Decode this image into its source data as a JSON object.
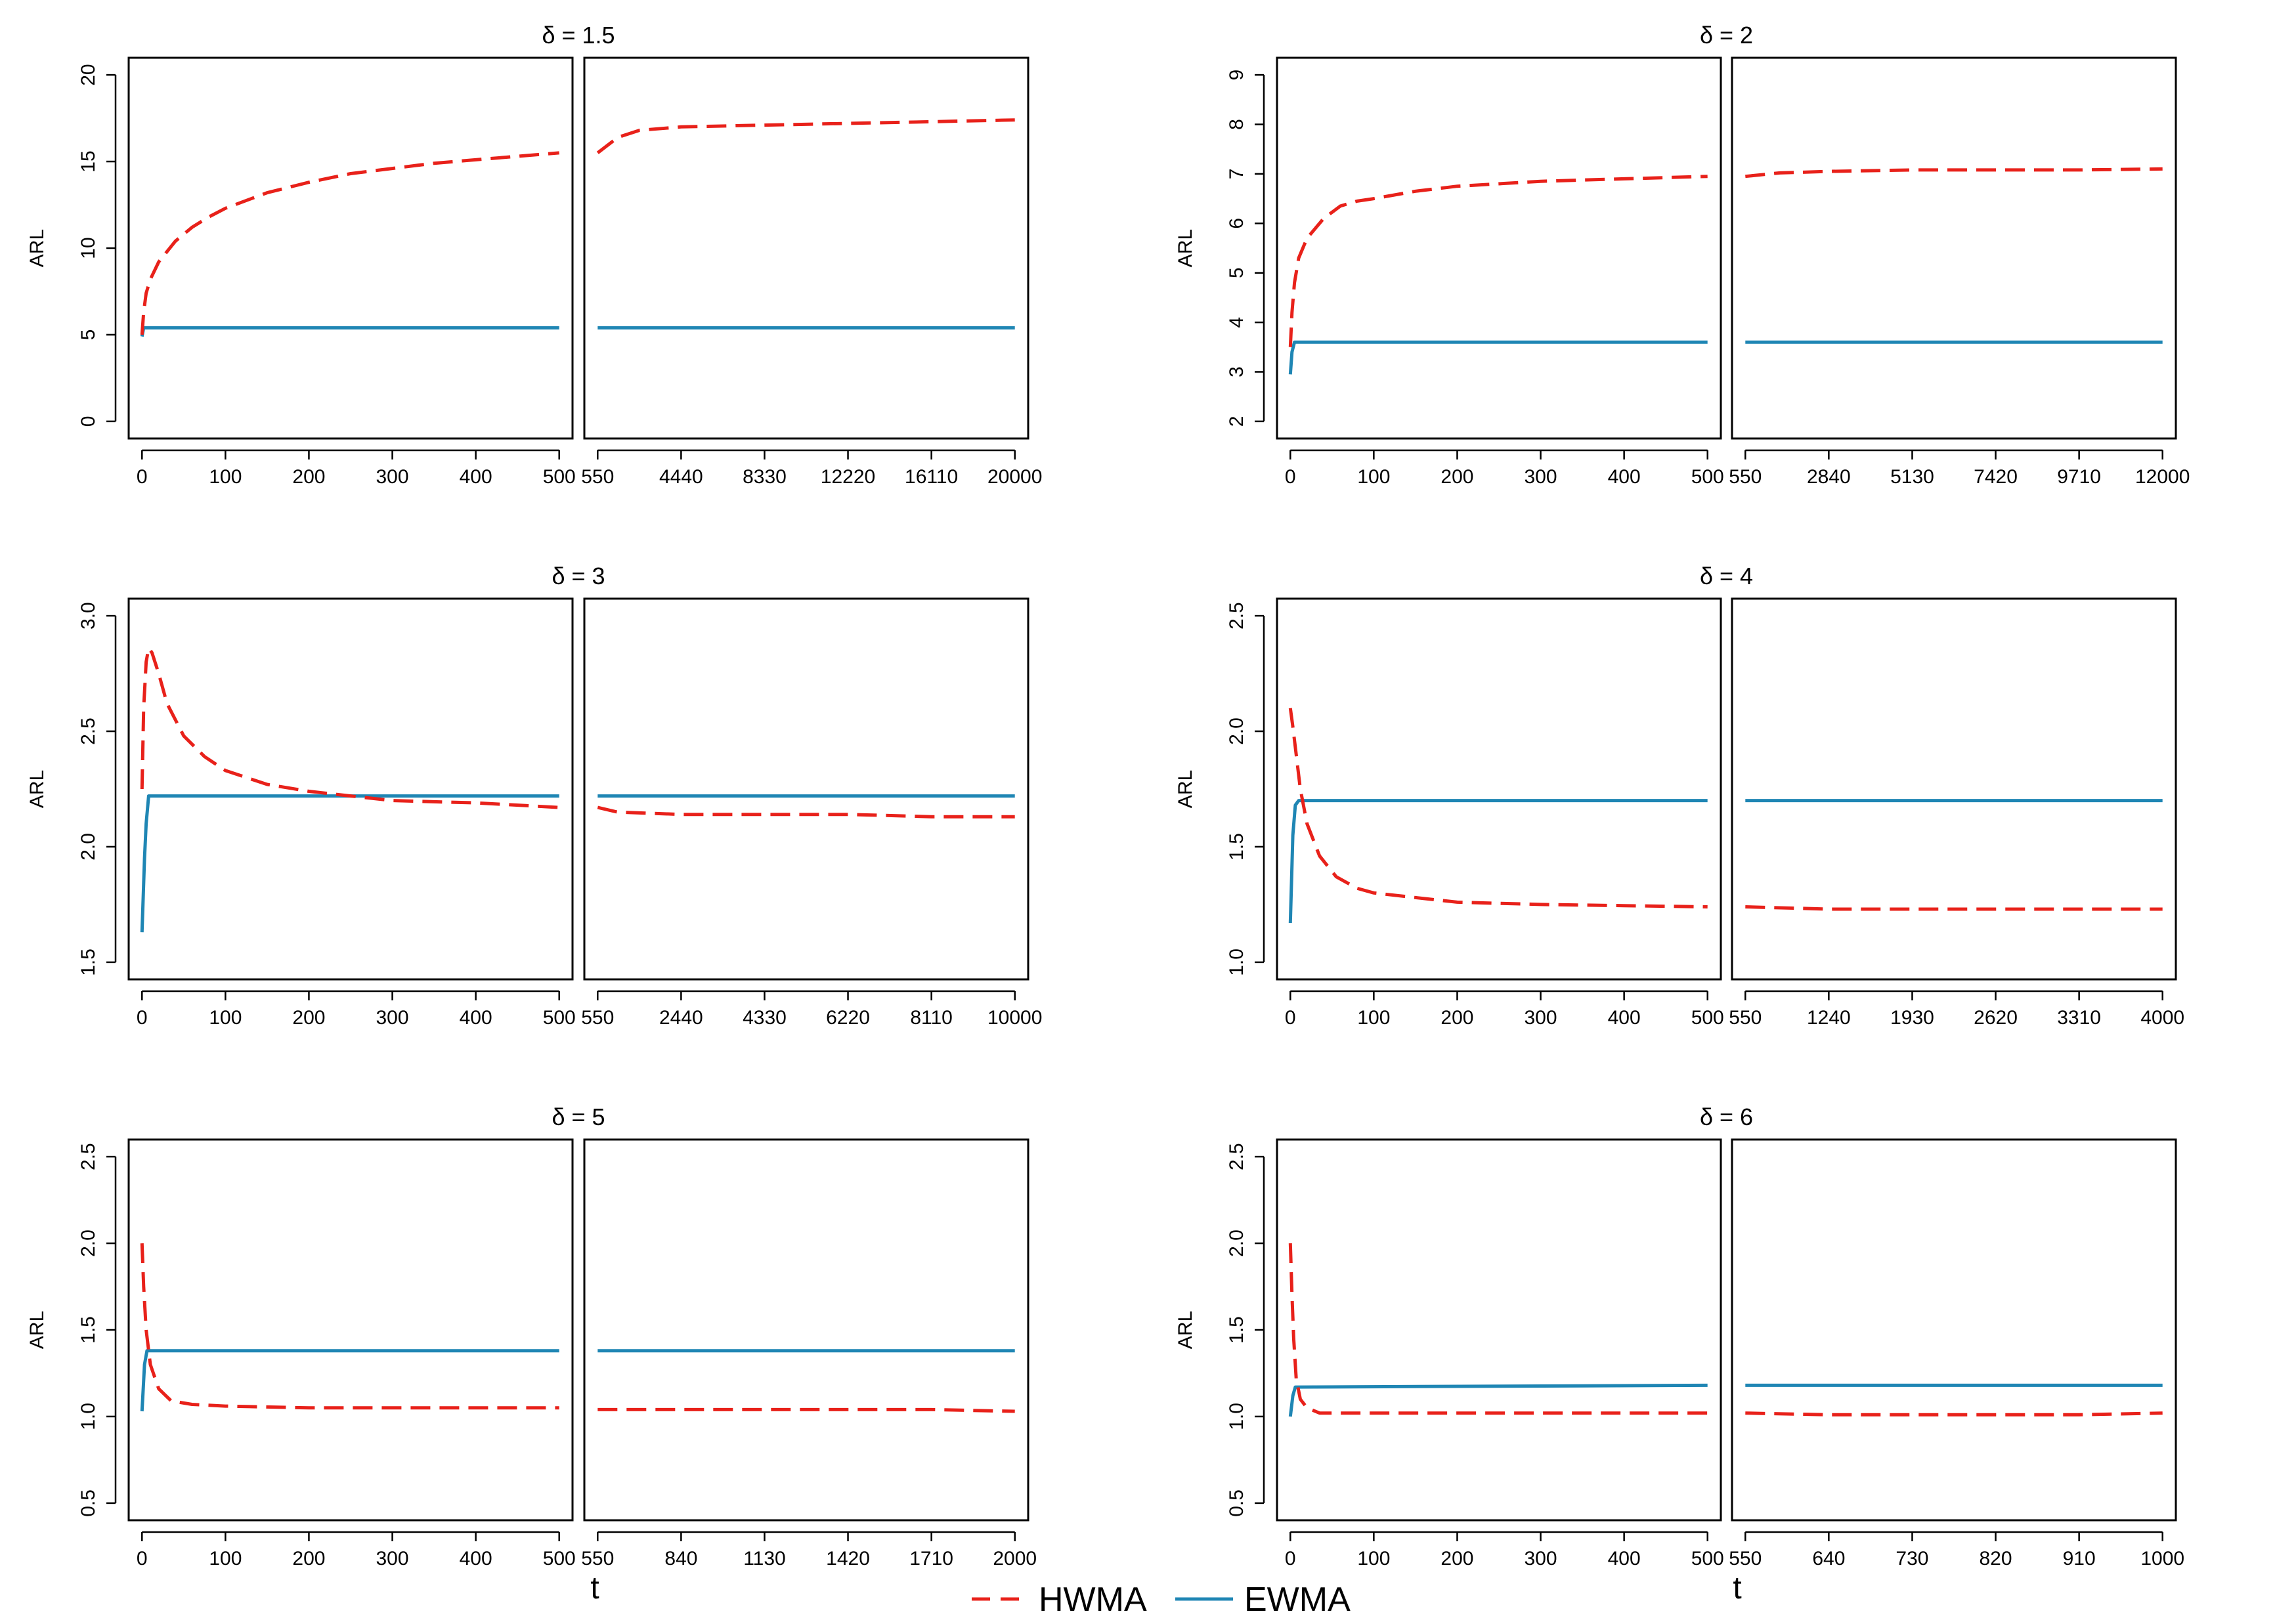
{
  "chart_data": {
    "type": "line",
    "layout": "3 rows x 2 columns of panel pairs; each pair is a split t-axis (left: t = 0 to 500, right: 550 to end)",
    "series_names": [
      "HWMA",
      "EWMA"
    ],
    "colors": {
      "HWMA": "#e8211a",
      "EWMA": "#1f86b4"
    },
    "legend": {
      "position": "bottom-center",
      "entries": [
        "HWMA",
        "EWMA"
      ]
    },
    "xlabel": "t",
    "panels": [
      {
        "title": "δ = 1.5",
        "ylabel": "ARL",
        "ylim": [
          0,
          20
        ],
        "yticks": [
          "0",
          "5",
          "10",
          "15",
          "20"
        ],
        "left_xticks": [
          "0",
          "100",
          "200",
          "300",
          "400",
          "500"
        ],
        "right_xticks": [
          "550",
          "4440",
          "8330",
          "12220",
          "16110",
          "20000"
        ],
        "right_xrange": [
          550,
          20000
        ],
        "hwma_left": [
          [
            0,
            5.0
          ],
          [
            2,
            6.3
          ],
          [
            5,
            7.4
          ],
          [
            10,
            8.2
          ],
          [
            20,
            9.2
          ],
          [
            40,
            10.4
          ],
          [
            60,
            11.2
          ],
          [
            80,
            11.8
          ],
          [
            100,
            12.3
          ],
          [
            150,
            13.2
          ],
          [
            200,
            13.8
          ],
          [
            250,
            14.3
          ],
          [
            300,
            14.6
          ],
          [
            350,
            14.9
          ],
          [
            400,
            15.1
          ],
          [
            450,
            15.3
          ],
          [
            500,
            15.5
          ]
        ],
        "hwma_right": [
          [
            550,
            15.5
          ],
          [
            1500,
            16.4
          ],
          [
            2500,
            16.8
          ],
          [
            4440,
            17.0
          ],
          [
            8330,
            17.1
          ],
          [
            12220,
            17.2
          ],
          [
            16110,
            17.3
          ],
          [
            20000,
            17.4
          ]
        ],
        "ewma_left": [
          [
            0,
            4.9
          ],
          [
            2,
            5.4
          ],
          [
            500,
            5.4
          ]
        ],
        "ewma_right": [
          [
            550,
            5.4
          ],
          [
            20000,
            5.4
          ]
        ]
      },
      {
        "title": "δ = 2",
        "ylabel": "ARL",
        "ylim": [
          2,
          9
        ],
        "yticks": [
          "2",
          "3",
          "4",
          "5",
          "6",
          "7",
          "8",
          "9"
        ],
        "left_xticks": [
          "0",
          "100",
          "200",
          "300",
          "400",
          "500"
        ],
        "right_xticks": [
          "550",
          "2840",
          "5130",
          "7420",
          "9710",
          "12000"
        ],
        "right_xrange": [
          550,
          12000
        ],
        "hwma_left": [
          [
            0,
            3.5
          ],
          [
            2,
            4.2
          ],
          [
            5,
            4.8
          ],
          [
            10,
            5.3
          ],
          [
            20,
            5.7
          ],
          [
            40,
            6.1
          ],
          [
            60,
            6.35
          ],
          [
            80,
            6.45
          ],
          [
            100,
            6.5
          ],
          [
            150,
            6.65
          ],
          [
            200,
            6.75
          ],
          [
            300,
            6.85
          ],
          [
            400,
            6.9
          ],
          [
            500,
            6.95
          ]
        ],
        "hwma_right": [
          [
            550,
            6.95
          ],
          [
            1500,
            7.02
          ],
          [
            2840,
            7.05
          ],
          [
            5130,
            7.08
          ],
          [
            7420,
            7.08
          ],
          [
            9710,
            7.08
          ],
          [
            12000,
            7.1
          ]
        ],
        "ewma_left": [
          [
            0,
            2.95
          ],
          [
            2,
            3.4
          ],
          [
            5,
            3.6
          ],
          [
            500,
            3.6
          ]
        ],
        "ewma_right": [
          [
            550,
            3.6
          ],
          [
            12000,
            3.6
          ]
        ]
      },
      {
        "title": "δ = 3",
        "ylabel": "ARL",
        "ylim": [
          1.5,
          3.0
        ],
        "yticks": [
          "1.5",
          "2.0",
          "2.5",
          "3.0"
        ],
        "left_xticks": [
          "0",
          "100",
          "200",
          "300",
          "400",
          "500"
        ],
        "right_xticks": [
          "550",
          "2440",
          "4330",
          "6220",
          "8110",
          "10000"
        ],
        "right_xrange": [
          550,
          10000
        ],
        "hwma_left": [
          [
            0,
            2.25
          ],
          [
            2,
            2.6
          ],
          [
            5,
            2.8
          ],
          [
            8,
            2.86
          ],
          [
            12,
            2.84
          ],
          [
            20,
            2.75
          ],
          [
            30,
            2.62
          ],
          [
            50,
            2.48
          ],
          [
            75,
            2.39
          ],
          [
            100,
            2.33
          ],
          [
            150,
            2.27
          ],
          [
            200,
            2.24
          ],
          [
            250,
            2.22
          ],
          [
            300,
            2.2
          ],
          [
            400,
            2.19
          ],
          [
            500,
            2.17
          ]
        ],
        "hwma_right": [
          [
            550,
            2.17
          ],
          [
            1000,
            2.15
          ],
          [
            2440,
            2.14
          ],
          [
            4330,
            2.14
          ],
          [
            6220,
            2.14
          ],
          [
            8110,
            2.13
          ],
          [
            10000,
            2.13
          ]
        ],
        "ewma_left": [
          [
            0,
            1.63
          ],
          [
            3,
            1.95
          ],
          [
            5,
            2.1
          ],
          [
            8,
            2.22
          ],
          [
            500,
            2.22
          ]
        ],
        "ewma_right": [
          [
            550,
            2.22
          ],
          [
            10000,
            2.22
          ]
        ]
      },
      {
        "title": "δ = 4",
        "ylabel": "ARL",
        "ylim": [
          1.0,
          2.5
        ],
        "yticks": [
          "1.0",
          "1.5",
          "2.0",
          "2.5"
        ],
        "left_xticks": [
          "0",
          "100",
          "200",
          "300",
          "400",
          "500"
        ],
        "right_xticks": [
          "550",
          "1240",
          "1930",
          "2620",
          "3310",
          "4000"
        ],
        "right_xrange": [
          550,
          4000
        ],
        "hwma_left": [
          [
            0,
            2.1
          ],
          [
            3,
            2.02
          ],
          [
            7,
            1.9
          ],
          [
            12,
            1.75
          ],
          [
            20,
            1.6
          ],
          [
            35,
            1.46
          ],
          [
            55,
            1.37
          ],
          [
            80,
            1.32
          ],
          [
            100,
            1.3
          ],
          [
            150,
            1.28
          ],
          [
            200,
            1.26
          ],
          [
            300,
            1.25
          ],
          [
            400,
            1.245
          ],
          [
            500,
            1.24
          ]
        ],
        "hwma_right": [
          [
            550,
            1.24
          ],
          [
            1240,
            1.23
          ],
          [
            1930,
            1.23
          ],
          [
            2620,
            1.23
          ],
          [
            3310,
            1.23
          ],
          [
            4000,
            1.23
          ]
        ],
        "ewma_left": [
          [
            0,
            1.17
          ],
          [
            3,
            1.55
          ],
          [
            6,
            1.68
          ],
          [
            10,
            1.7
          ],
          [
            500,
            1.7
          ]
        ],
        "ewma_right": [
          [
            550,
            1.7
          ],
          [
            4000,
            1.7
          ]
        ]
      },
      {
        "title": "δ = 5",
        "ylabel": "ARL",
        "ylim": [
          0.5,
          2.5
        ],
        "yticks": [
          "0.5",
          "1.0",
          "1.5",
          "2.0",
          "2.5"
        ],
        "left_xticks": [
          "0",
          "100",
          "200",
          "300",
          "400",
          "500"
        ],
        "right_xticks": [
          "550",
          "840",
          "1130",
          "1420",
          "1710",
          "2000"
        ],
        "right_xrange": [
          550,
          2000
        ],
        "hwma_left": [
          [
            0,
            2.0
          ],
          [
            2,
            1.75
          ],
          [
            5,
            1.5
          ],
          [
            10,
            1.3
          ],
          [
            20,
            1.16
          ],
          [
            35,
            1.09
          ],
          [
            60,
            1.07
          ],
          [
            100,
            1.06
          ],
          [
            200,
            1.05
          ],
          [
            300,
            1.05
          ],
          [
            400,
            1.05
          ],
          [
            500,
            1.05
          ]
        ],
        "hwma_right": [
          [
            550,
            1.04
          ],
          [
            840,
            1.04
          ],
          [
            1130,
            1.04
          ],
          [
            1420,
            1.04
          ],
          [
            1710,
            1.04
          ],
          [
            2000,
            1.03
          ]
        ],
        "ewma_left": [
          [
            0,
            1.03
          ],
          [
            3,
            1.3
          ],
          [
            6,
            1.38
          ],
          [
            500,
            1.38
          ]
        ],
        "ewma_right": [
          [
            550,
            1.38
          ],
          [
            2000,
            1.38
          ]
        ]
      },
      {
        "title": "δ = 6",
        "ylabel": "ARL",
        "ylim": [
          0.5,
          2.5
        ],
        "yticks": [
          "0.5",
          "1.0",
          "1.5",
          "2.0",
          "2.5"
        ],
        "left_xticks": [
          "0",
          "100",
          "200",
          "300",
          "400",
          "500"
        ],
        "right_xticks": [
          "550",
          "640",
          "730",
          "820",
          "910",
          "1000"
        ],
        "right_xrange": [
          550,
          1000
        ],
        "hwma_left": [
          [
            0,
            2.0
          ],
          [
            2,
            1.7
          ],
          [
            4,
            1.45
          ],
          [
            7,
            1.22
          ],
          [
            12,
            1.1
          ],
          [
            20,
            1.05
          ],
          [
            35,
            1.02
          ],
          [
            100,
            1.02
          ],
          [
            200,
            1.02
          ],
          [
            300,
            1.02
          ],
          [
            400,
            1.02
          ],
          [
            500,
            1.02
          ]
        ],
        "hwma_right": [
          [
            550,
            1.02
          ],
          [
            640,
            1.01
          ],
          [
            730,
            1.01
          ],
          [
            820,
            1.01
          ],
          [
            910,
            1.01
          ],
          [
            1000,
            1.02
          ]
        ],
        "ewma_left": [
          [
            0,
            1.0
          ],
          [
            3,
            1.12
          ],
          [
            6,
            1.17
          ],
          [
            500,
            1.18
          ]
        ],
        "ewma_right": [
          [
            550,
            1.18
          ],
          [
            1000,
            1.18
          ]
        ]
      }
    ]
  }
}
